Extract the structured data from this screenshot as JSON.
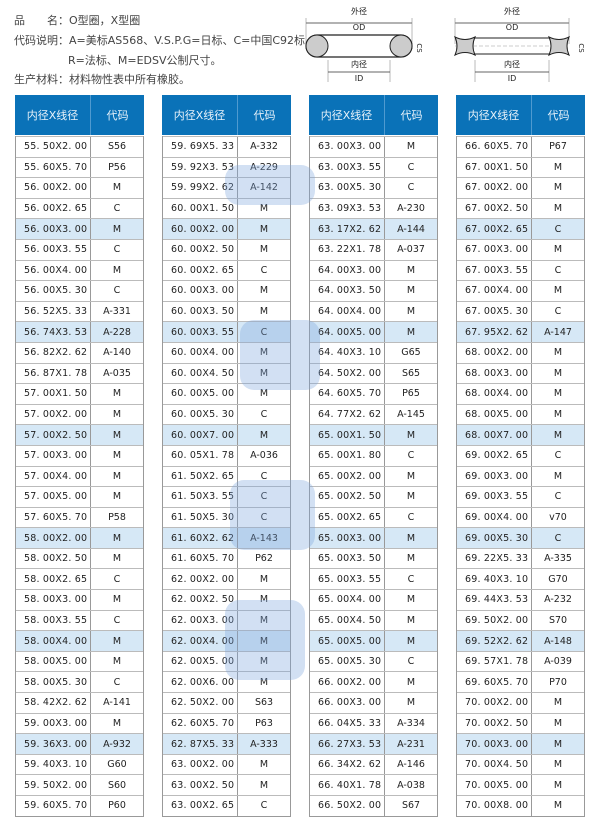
{
  "info": {
    "product_label": "品　　名：",
    "product_value": "O型圈，X型圈",
    "code_label": "代码说明：",
    "code_line1": "A=美标AS568、V.S.P.G=日标、C=中国C92标、",
    "code_line2": "R=法标、M=EDSV公制尺寸。",
    "material_label": "生产材料：",
    "material_value": "材料物性表中所有橡胶。"
  },
  "diagrams": [
    {
      "od_cn": "外径",
      "od": "OD",
      "id_cn": "内径",
      "id": "ID",
      "cs_cn": "线径",
      "cs": "CS",
      "shape": "o-ring"
    },
    {
      "od_cn": "外径",
      "od": "OD",
      "id_cn": "内径",
      "id": "ID",
      "cs_cn": "线径",
      "cs": "CS",
      "shape": "x-ring"
    }
  ],
  "table_header": {
    "size": "内径X线径",
    "code": "代码"
  },
  "colors": {
    "header": "#0a72b8",
    "highlight_row": "#d6e8f6"
  },
  "tables": [
    [
      [
        "55. 50X2. 00",
        "S56"
      ],
      [
        "55. 60X5. 70",
        "P56"
      ],
      [
        "56. 00X2. 00",
        "M"
      ],
      [
        "56. 00X2. 65",
        "C"
      ],
      [
        "56. 00X3. 00",
        "M"
      ],
      [
        "56. 00X3. 55",
        "C"
      ],
      [
        "56. 00X4. 00",
        "M"
      ],
      [
        "56. 00X5. 30",
        "C"
      ],
      [
        "56. 52X5. 33",
        "A-331"
      ],
      [
        "56. 74X3. 53",
        "A-228"
      ],
      [
        "56. 82X2. 62",
        "A-140"
      ],
      [
        "56. 87X1. 78",
        "A-035"
      ],
      [
        "57. 00X1. 50",
        "M"
      ],
      [
        "57. 00X2. 00",
        "M"
      ],
      [
        "57. 00X2. 50",
        "M"
      ],
      [
        "57. 00X3. 00",
        "M"
      ],
      [
        "57. 00X4. 00",
        "M"
      ],
      [
        "57. 00X5. 00",
        "M"
      ],
      [
        "57. 60X5. 70",
        "P58"
      ],
      [
        "58. 00X2. 00",
        "M"
      ],
      [
        "58. 00X2. 50",
        "M"
      ],
      [
        "58. 00X2. 65",
        "C"
      ],
      [
        "58. 00X3. 00",
        "M"
      ],
      [
        "58. 00X3. 55",
        "C"
      ],
      [
        "58. 00X4. 00",
        "M"
      ],
      [
        "58. 00X5. 00",
        "M"
      ],
      [
        "58. 00X5. 30",
        "C"
      ],
      [
        "58. 42X2. 62",
        "A-141"
      ],
      [
        "59. 00X3. 00",
        "M"
      ],
      [
        "59. 36X3. 00",
        "A-932"
      ],
      [
        "59. 40X3. 10",
        "G60"
      ],
      [
        "59. 50X2. 00",
        "S60"
      ],
      [
        "59. 60X5. 70",
        "P60"
      ]
    ],
    [
      [
        "59. 69X5. 33",
        "A-332"
      ],
      [
        "59. 92X3. 53",
        "A-229"
      ],
      [
        "59. 99X2. 62",
        "A-142"
      ],
      [
        "60. 00X1. 50",
        "M"
      ],
      [
        "60. 00X2. 00",
        "M"
      ],
      [
        "60. 00X2. 50",
        "M"
      ],
      [
        "60. 00X2. 65",
        "C"
      ],
      [
        "60. 00X3. 00",
        "M"
      ],
      [
        "60. 00X3. 50",
        "M"
      ],
      [
        "60. 00X3. 55",
        "C"
      ],
      [
        "60. 00X4. 00",
        "M"
      ],
      [
        "60. 00X4. 50",
        "M"
      ],
      [
        "60. 00X5. 00",
        "M"
      ],
      [
        "60. 00X5. 30",
        "C"
      ],
      [
        "60. 00X7. 00",
        "M"
      ],
      [
        "60. 05X1. 78",
        "A-036"
      ],
      [
        "61. 50X2. 65",
        "C"
      ],
      [
        "61. 50X3. 55",
        "C"
      ],
      [
        "61. 50X5. 30",
        "C"
      ],
      [
        "61. 60X2. 62",
        "A-143"
      ],
      [
        "61. 60X5. 70",
        "P62"
      ],
      [
        "62. 00X2. 00",
        "M"
      ],
      [
        "62. 00X2. 50",
        "M"
      ],
      [
        "62. 00X3. 00",
        "M"
      ],
      [
        "62. 00X4. 00",
        "M"
      ],
      [
        "62. 00X5. 00",
        "M"
      ],
      [
        "62. 00X6. 00",
        "M"
      ],
      [
        "62. 50X2. 00",
        "S63"
      ],
      [
        "62. 60X5. 70",
        "P63"
      ],
      [
        "62. 87X5. 33",
        "A-333"
      ],
      [
        "63. 00X2. 00",
        "M"
      ],
      [
        "63. 00X2. 50",
        "M"
      ],
      [
        "63. 00X2. 65",
        "C"
      ]
    ],
    [
      [
        "63. 00X3. 00",
        "M"
      ],
      [
        "63. 00X3. 55",
        "C"
      ],
      [
        "63. 00X5. 30",
        "C"
      ],
      [
        "63. 09X3. 53",
        "A-230"
      ],
      [
        "63. 17X2. 62",
        "A-144"
      ],
      [
        "63. 22X1. 78",
        "A-037"
      ],
      [
        "64. 00X3. 00",
        "M"
      ],
      [
        "64. 00X3. 50",
        "M"
      ],
      [
        "64. 00X4. 00",
        "M"
      ],
      [
        "64. 00X5. 00",
        "M"
      ],
      [
        "64. 40X3. 10",
        "G65"
      ],
      [
        "64. 50X2. 00",
        "S65"
      ],
      [
        "64. 60X5. 70",
        "P65"
      ],
      [
        "64. 77X2. 62",
        "A-145"
      ],
      [
        "65. 00X1. 50",
        "M"
      ],
      [
        "65. 00X1. 80",
        "C"
      ],
      [
        "65. 00X2. 00",
        "M"
      ],
      [
        "65. 00X2. 50",
        "M"
      ],
      [
        "65. 00X2. 65",
        "C"
      ],
      [
        "65. 00X3. 00",
        "M"
      ],
      [
        "65. 00X3. 50",
        "M"
      ],
      [
        "65. 00X3. 55",
        "C"
      ],
      [
        "65. 00X4. 00",
        "M"
      ],
      [
        "65. 00X4. 50",
        "M"
      ],
      [
        "65. 00X5. 00",
        "M"
      ],
      [
        "65. 00X5. 30",
        "C"
      ],
      [
        "66. 00X2. 00",
        "M"
      ],
      [
        "66. 00X3. 00",
        "M"
      ],
      [
        "66. 04X5. 33",
        "A-334"
      ],
      [
        "66. 27X3. 53",
        "A-231"
      ],
      [
        "66. 34X2. 62",
        "A-146"
      ],
      [
        "66. 40X1. 78",
        "A-038"
      ],
      [
        "66. 50X2. 00",
        "S67"
      ]
    ],
    [
      [
        "66. 60X5. 70",
        "P67"
      ],
      [
        "67. 00X1. 50",
        "M"
      ],
      [
        "67. 00X2. 00",
        "M"
      ],
      [
        "67. 00X2. 50",
        "M"
      ],
      [
        "67. 00X2. 65",
        "C"
      ],
      [
        "67. 00X3. 00",
        "M"
      ],
      [
        "67. 00X3. 55",
        "C"
      ],
      [
        "67. 00X4. 00",
        "M"
      ],
      [
        "67. 00X5. 30",
        "C"
      ],
      [
        "67. 95X2. 62",
        "A-147"
      ],
      [
        "68. 00X2. 00",
        "M"
      ],
      [
        "68. 00X3. 00",
        "M"
      ],
      [
        "68. 00X4. 00",
        "M"
      ],
      [
        "68. 00X5. 00",
        "M"
      ],
      [
        "68. 00X7. 00",
        "M"
      ],
      [
        "69. 00X2. 65",
        "C"
      ],
      [
        "69. 00X3. 00",
        "M"
      ],
      [
        "69. 00X3. 55",
        "C"
      ],
      [
        "69. 00X4. 00",
        "v70"
      ],
      [
        "69. 00X5. 30",
        "C"
      ],
      [
        "69. 22X5. 33",
        "A-335"
      ],
      [
        "69. 40X3. 10",
        "G70"
      ],
      [
        "69. 44X3. 53",
        "A-232"
      ],
      [
        "69. 50X2. 00",
        "S70"
      ],
      [
        "69. 52X2. 62",
        "A-148"
      ],
      [
        "69. 57X1. 78",
        "A-039"
      ],
      [
        "69. 60X5. 70",
        "P70"
      ],
      [
        "70. 00X2. 00",
        "M"
      ],
      [
        "70. 00X2. 50",
        "M"
      ],
      [
        "70. 00X3. 00",
        "M"
      ],
      [
        "70. 00X4. 50",
        "M"
      ],
      [
        "70. 00X5. 00",
        "M"
      ],
      [
        "70. 00X8. 00",
        "M"
      ]
    ]
  ]
}
